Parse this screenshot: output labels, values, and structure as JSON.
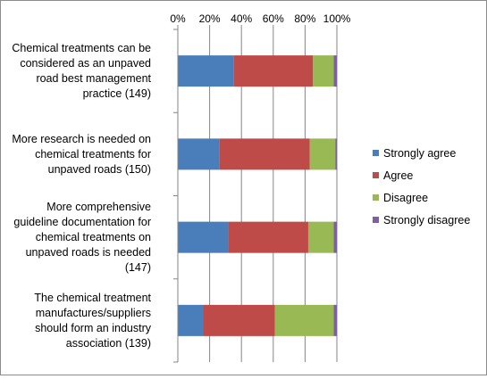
{
  "chart_data": {
    "type": "bar",
    "orientation": "horizontal",
    "stacked": "percent",
    "categories": [
      [
        "Chemical treatments can be",
        "considered as an unpaved",
        "road best management",
        "practice (149)"
      ],
      [
        "More research is needed on",
        "chemical treatments for",
        "unpaved roads (150)"
      ],
      [
        "More comprehensive",
        "guideline documentation for",
        "chemical treatments on",
        "unpaved roads is needed",
        "(147)"
      ],
      [
        "The chemical treatment",
        "manufactures/suppliers",
        "should form an industry",
        "association (139)"
      ]
    ],
    "series": [
      {
        "name": "Strongly agree",
        "color": "#4a7ebb",
        "values": [
          35,
          26,
          32,
          16
        ]
      },
      {
        "name": "Agree",
        "color": "#be4b48",
        "values": [
          50,
          57,
          50,
          45
        ]
      },
      {
        "name": "Disagree",
        "color": "#98b954",
        "values": [
          13,
          16,
          16,
          37
        ]
      },
      {
        "name": "Strongly disagree",
        "color": "#7d60a0",
        "values": [
          2,
          1,
          2,
          2
        ]
      }
    ],
    "xaxis": {
      "ticks": [
        "0%",
        "20%",
        "40%",
        "60%",
        "80%",
        "100%"
      ],
      "range": [
        0,
        100
      ],
      "position": "top"
    },
    "gridlines": true,
    "legend": "right"
  }
}
